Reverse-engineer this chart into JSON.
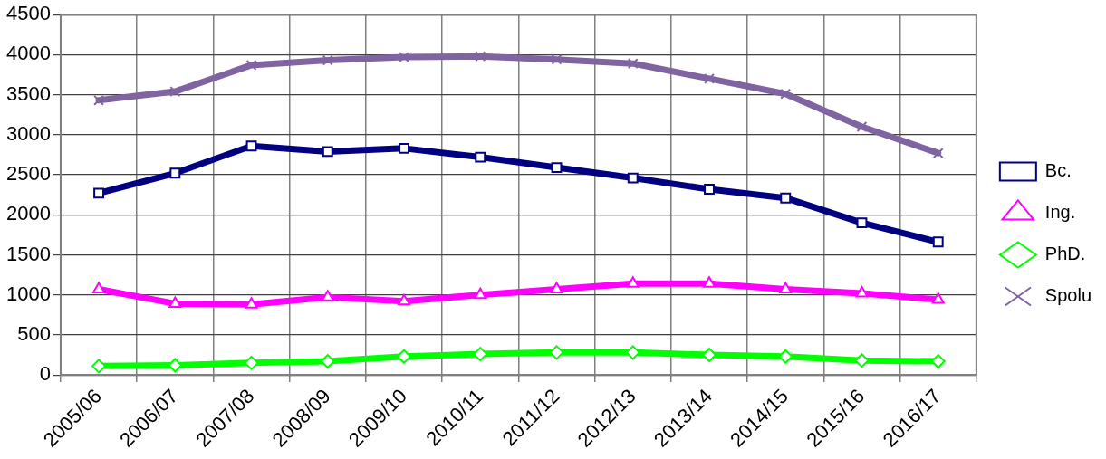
{
  "chart_data": {
    "type": "line",
    "categories": [
      "2005/06",
      "2006/07",
      "2007/08",
      "2008/09",
      "2009/10",
      "2010/11",
      "2011/12",
      "2012/13",
      "2013/14",
      "2014/15",
      "2015/16",
      "2016/17"
    ],
    "series": [
      {
        "name": "Bc.",
        "color": "#000080",
        "marker": "square",
        "values": [
          2270,
          2520,
          2860,
          2790,
          2830,
          2720,
          2590,
          2460,
          2320,
          2210,
          1900,
          1660
        ]
      },
      {
        "name": "Ing.",
        "color": "#ff00ff",
        "marker": "triangle",
        "values": [
          1070,
          890,
          880,
          970,
          920,
          1000,
          1070,
          1140,
          1140,
          1070,
          1020,
          940
        ]
      },
      {
        "name": "PhD.",
        "color": "#00ff00",
        "marker": "diamond",
        "values": [
          110,
          120,
          150,
          170,
          230,
          260,
          280,
          280,
          250,
          230,
          180,
          170
        ]
      },
      {
        "name": "Spolu",
        "color": "#8064a2",
        "marker": "cross",
        "values": [
          3430,
          3540,
          3870,
          3930,
          3970,
          3980,
          3940,
          3890,
          3700,
          3510,
          3100,
          2770
        ]
      }
    ],
    "ylim": [
      0,
      4500
    ],
    "yticks": [
      0,
      500,
      1000,
      1500,
      2000,
      2500,
      3000,
      3500,
      4000,
      4500
    ],
    "grid": true,
    "legend": "right",
    "line_style": "solid"
  }
}
